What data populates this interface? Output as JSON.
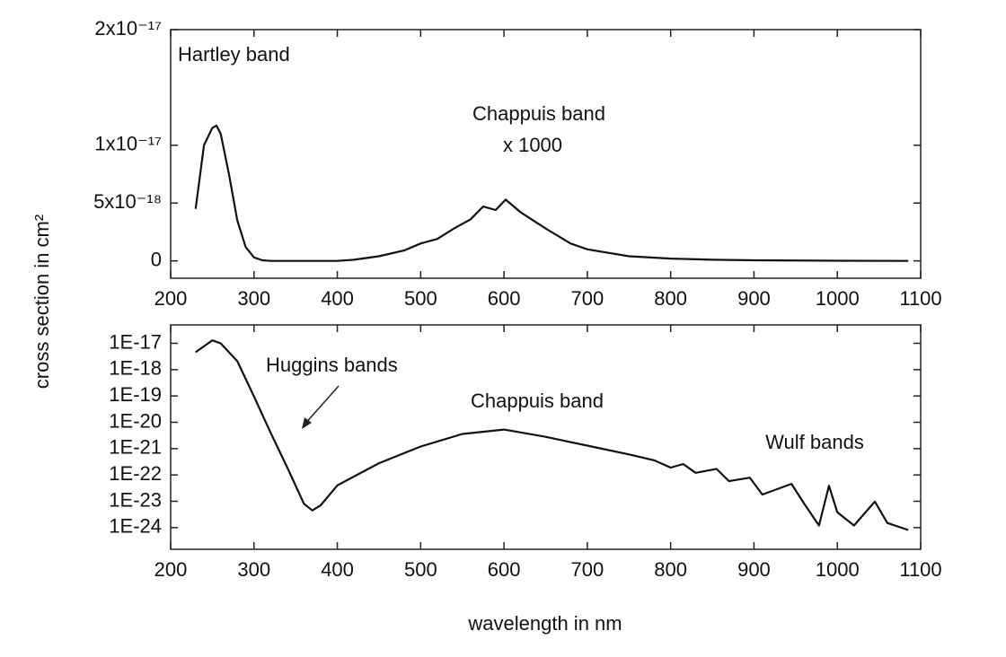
{
  "chart_data": [
    {
      "type": "line",
      "ylabel": "cross section in cm²",
      "x": [
        230,
        240,
        250,
        255,
        260,
        270,
        280,
        290,
        300,
        310,
        320,
        400,
        420,
        450,
        480,
        500,
        520,
        540,
        560,
        575,
        590,
        602,
        620,
        650,
        680,
        700,
        750,
        800,
        850,
        900,
        1000,
        1085
      ],
      "series": [
        {
          "color": "#111111",
          "values": [
            4.5e-18,
            1e-17,
            1.15e-17,
            1.17e-17,
            1.1e-17,
            7.5e-18,
            3.5e-18,
            1.2e-18,
            3e-19,
            5e-20,
            0,
            0,
            1e-19,
            4e-19,
            9e-19,
            1.5e-18,
            1.9e-18,
            2.8e-18,
            3.6e-18,
            4.7e-18,
            4.4e-18,
            5.3e-18,
            4.2e-18,
            2.8e-18,
            1.5e-18,
            1e-18,
            4e-19,
            2e-19,
            1e-19,
            5e-20,
            1e-20,
            0
          ]
        }
      ],
      "xlim": [
        200,
        1100
      ],
      "xticks": [
        200,
        300,
        400,
        500,
        600,
        700,
        800,
        900,
        1000,
        1100
      ],
      "ylim": [
        -1.5e-18,
        2e-17
      ],
      "yticks": [
        {
          "value": 0,
          "label": "0"
        },
        {
          "value": 5e-18,
          "label": "5x10⁻¹⁸"
        },
        {
          "value": 1e-17,
          "label": "1x10⁻¹⁷"
        },
        {
          "value": 2e-17,
          "label": "2x10⁻¹⁷"
        }
      ],
      "log_y": false,
      "annotations": [
        "Hartley band",
        "Chappuis band",
        "x 1000"
      ]
    },
    {
      "type": "line",
      "xlabel": "wavelength in nm",
      "x": [
        230,
        250,
        260,
        280,
        300,
        320,
        340,
        360,
        370,
        380,
        400,
        450,
        500,
        550,
        600,
        650,
        700,
        750,
        780,
        800,
        815,
        830,
        855,
        870,
        895,
        910,
        945,
        960,
        978,
        990,
        1000,
        1020,
        1045,
        1060,
        1085
      ],
      "series": [
        {
          "color": "#111111",
          "values": [
            4.6e-18,
            1.3e-17,
            1e-17,
            2.1e-18,
            9.5e-20,
            4e-21,
            1.9e-22,
            8e-24,
            4.5e-24,
            7e-24,
            4e-23,
            2.8e-22,
            1.2e-21,
            3.6e-21,
            5.3e-21,
            2.8e-21,
            1.3e-21,
            6e-22,
            3.6e-22,
            1.9e-22,
            2.6e-22,
            1.2e-22,
            1.7e-22,
            5.8e-23,
            7.9e-23,
            1.8e-23,
            4.6e-23,
            8.3e-24,
            1.2e-24,
            3.9e-23,
            3.8e-24,
            1.2e-24,
            9.8e-24,
            1.5e-24,
            8.1e-25
          ]
        }
      ],
      "xlim": [
        200,
        1100
      ],
      "xticks": [
        200,
        300,
        400,
        500,
        600,
        700,
        800,
        900,
        1000,
        1100
      ],
      "ylim": [
        1.5e-25,
        5e-17
      ],
      "yticks": [
        {
          "value": 1e-17,
          "label": "1E-17"
        },
        {
          "value": 1e-18,
          "label": "1E-18"
        },
        {
          "value": 1e-19,
          "label": "1E-19"
        },
        {
          "value": 1e-20,
          "label": "1E-20"
        },
        {
          "value": 1e-21,
          "label": "1E-21"
        },
        {
          "value": 1e-22,
          "label": "1E-22"
        },
        {
          "value": 1e-23,
          "label": "1E-23"
        },
        {
          "value": 1e-24,
          "label": "1E-24"
        }
      ],
      "log_y": true,
      "annotations": [
        "Huggins bands",
        "Chappuis band",
        "Wulf bands"
      ]
    }
  ]
}
